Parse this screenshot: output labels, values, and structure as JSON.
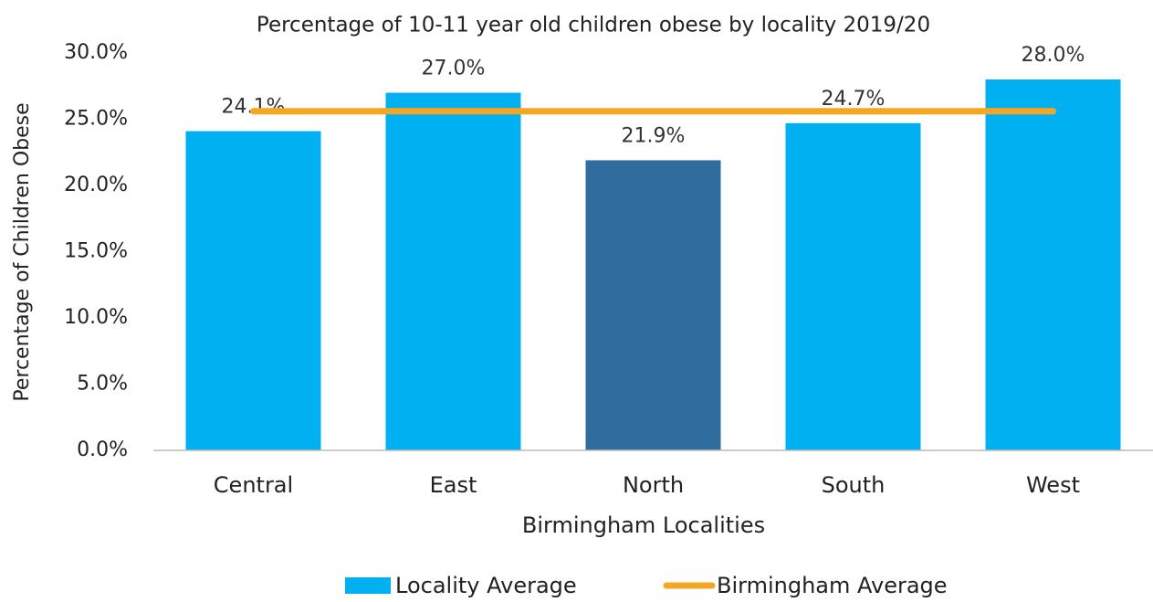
{
  "chart_data": {
    "type": "bar",
    "title": "Percentage of 10-11 year old children obese  by locality 2019/20",
    "x_label": "Birmingham Localities",
    "y_label": "Percentage of Children Obese",
    "categories": [
      "Central",
      "East",
      "North",
      "South",
      "West"
    ],
    "series": [
      {
        "name": "Locality Average",
        "type": "bar",
        "color": "#00b0f0",
        "colors": [
          "#00b0f0",
          "#00b0f0",
          "#2f6d9e",
          "#00b0f0",
          "#00b0f0"
        ],
        "values": [
          24.1,
          27.0,
          21.9,
          24.7,
          28.0
        ],
        "value_labels": [
          "24.1%",
          "27.0%",
          "21.9%",
          "24.7%",
          "28.0%"
        ]
      },
      {
        "name": "Birmingham Average",
        "type": "line",
        "color": "#f5a623",
        "values": [
          25.6,
          25.6,
          25.6,
          25.6,
          25.6
        ]
      }
    ],
    "ylim": [
      0,
      30
    ],
    "yticks": [
      {
        "value": 0,
        "label": "0.0%"
      },
      {
        "value": 5,
        "label": "5.0%"
      },
      {
        "value": 10,
        "label": "10.0%"
      },
      {
        "value": 15,
        "label": "15.0%"
      },
      {
        "value": 20,
        "label": "20.0%"
      },
      {
        "value": 25,
        "label": "25.0%"
      },
      {
        "value": 30,
        "label": "30.0%"
      }
    ],
    "grid": false,
    "legend": "bottom"
  }
}
